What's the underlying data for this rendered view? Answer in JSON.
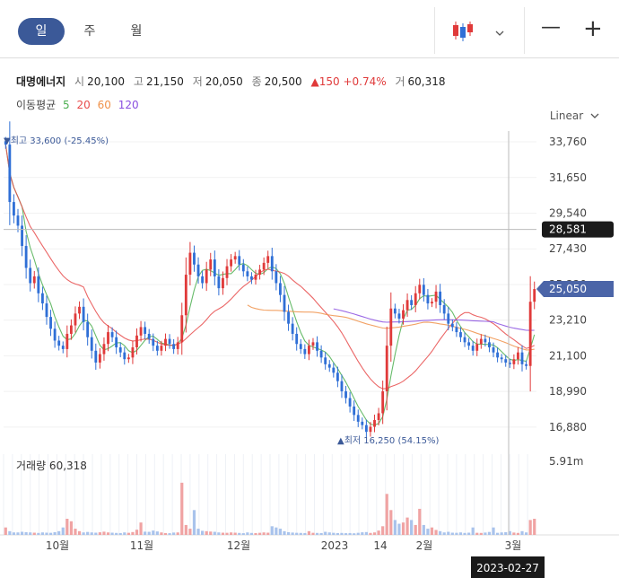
{
  "tabs": [
    {
      "label": "일",
      "active": true
    },
    {
      "label": "주",
      "active": false
    },
    {
      "label": "월",
      "active": false
    }
  ],
  "toolbar": {
    "chart_type_icon": "candlestick-icon",
    "dropdown_icon": "chevron-down-icon",
    "minus_label": "—",
    "plus_label": "+"
  },
  "stock": {
    "name": "대명에너지",
    "open_label": "시",
    "open": "20,100",
    "high_label": "고",
    "high": "21,150",
    "low_label": "저",
    "low": "20,050",
    "close_label": "종",
    "close": "20,500",
    "change": "▲150 +0.74%",
    "volume_label": "거",
    "volume": "60,318"
  },
  "moving_average": {
    "label": "이동평균",
    "periods": [
      {
        "value": "5",
        "color": "#4caf50"
      },
      {
        "value": "20",
        "color": "#e84c4c"
      },
      {
        "value": "60",
        "color": "#f0924a"
      },
      {
        "value": "120",
        "color": "#8a4fe0"
      }
    ]
  },
  "scale_label": "Linear",
  "scale_icon": "chevron-down-icon",
  "annotations": {
    "high": "▼최고 33,600 (-25.45%)",
    "low": "▲최저 16,250 (54.15%)"
  },
  "volume_panel": {
    "label": "거래량 60,318",
    "axis_label": "5.91m"
  },
  "crosshair": {
    "price": "28,581",
    "date": "2023-02-27"
  },
  "last_price_tag": "25,050",
  "colors": {
    "up": "#e03a3a",
    "down": "#2f6fd6",
    "accent": "#3b5998",
    "last_tag": "#4b65a8"
  },
  "chart_data": {
    "type": "candlestick",
    "y_ticks": [
      "33,760",
      "31,650",
      "29,540",
      "27,430",
      "25,320",
      "23,210",
      "21,100",
      "18,990",
      "16,880"
    ],
    "x_labels": [
      "10월",
      "11월",
      "12월",
      "2023",
      "14",
      "2월",
      "3월"
    ],
    "ylim": [
      15600,
      34400
    ],
    "close_series": [
      33600,
      30200,
      29400,
      28800,
      27600,
      26300,
      25400,
      25800,
      24800,
      24200,
      23400,
      22700,
      22000,
      21700,
      21500,
      22400,
      22900,
      23600,
      24000,
      23100,
      22200,
      21400,
      20700,
      21200,
      21800,
      22500,
      22200,
      21600,
      21300,
      20900,
      21000,
      21600,
      22300,
      22800,
      22400,
      22100,
      21700,
      21400,
      21700,
      22100,
      21800,
      21500,
      21900,
      23500,
      25900,
      27200,
      26500,
      25800,
      25400,
      26200,
      26800,
      25800,
      25100,
      25700,
      26400,
      26800,
      27000,
      26500,
      26100,
      25800,
      25600,
      25900,
      26200,
      26600,
      27000,
      26100,
      25400,
      24700,
      23700,
      23000,
      22400,
      21800,
      21500,
      21200,
      21700,
      21900,
      21400,
      21000,
      20600,
      20400,
      20100,
      19600,
      19000,
      18600,
      18100,
      17600,
      17200,
      17000,
      16600,
      16900,
      17300,
      17700,
      19000,
      21700,
      23900,
      23600,
      23300,
      23800,
      24400,
      24100,
      24800,
      25300,
      24700,
      24200,
      24300,
      24900,
      24100,
      23600,
      23000,
      22800,
      22500,
      22200,
      21900,
      21700,
      21400,
      21800,
      22100,
      21900,
      21600,
      21300,
      21000,
      20900,
      20700,
      20600,
      20900,
      21300,
      20600,
      20500,
      24300,
      25050
    ],
    "ma_periods": [
      5,
      20,
      60,
      120
    ],
    "volume_ylim": [
      0,
      6500000
    ],
    "volume_series": [
      600000,
      300000,
      200000,
      200000,
      250000,
      220000,
      200000,
      180000,
      160000,
      200000,
      180000,
      170000,
      220000,
      300000,
      600000,
      1300000,
      1100000,
      500000,
      300000,
      200000,
      240000,
      200000,
      180000,
      210000,
      260000,
      200000,
      180000,
      160000,
      150000,
      200000,
      170000,
      230000,
      420000,
      1000000,
      260000,
      250000,
      350000,
      280000,
      200000,
      150000,
      140000,
      190000,
      200000,
      4200000,
      800000,
      500000,
      2000000,
      500000,
      330000,
      300000,
      270000,
      250000,
      200000,
      180000,
      170000,
      200000,
      180000,
      160000,
      140000,
      200000,
      160000,
      150000,
      170000,
      200000,
      180000,
      700000,
      600000,
      500000,
      300000,
      220000,
      190000,
      170000,
      160000,
      150000,
      300000,
      170000,
      160000,
      150000,
      250000,
      200000,
      170000,
      150000,
      160000,
      140000,
      150000,
      130000,
      170000,
      210000,
      230000,
      160000,
      200000,
      350000,
      700000,
      3300000,
      2000000,
      1200000,
      900000,
      1000000,
      1400000,
      1200000,
      800000,
      2100000,
      800000,
      500000,
      600000,
      400000,
      300000,
      200000,
      250000,
      180000,
      170000,
      200000,
      160000,
      180000,
      600000,
      170000,
      160000,
      190000,
      240000,
      600000,
      170000,
      200000,
      220000,
      300000,
      190000,
      160000,
      300000,
      200000,
      1200000,
      1300000
    ]
  }
}
